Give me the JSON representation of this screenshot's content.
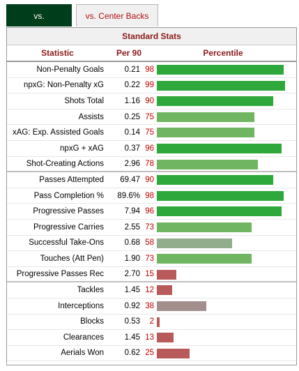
{
  "tabs": [
    {
      "label": "vs. Fullbacks",
      "active": true
    },
    {
      "label": "vs. Center Backs",
      "active": false
    }
  ],
  "table": {
    "title": "Standard Stats",
    "headers": {
      "statistic": "Statistic",
      "per90": "Per 90",
      "percentile": "Percentile"
    },
    "groups": [
      [
        {
          "stat": "Non-Penalty Goals",
          "per90": "0.21",
          "pct": 98
        },
        {
          "stat": "npxG: Non-Penalty xG",
          "per90": "0.22",
          "pct": 99
        },
        {
          "stat": "Shots Total",
          "per90": "1.16",
          "pct": 90
        },
        {
          "stat": "Assists",
          "per90": "0.25",
          "pct": 75
        },
        {
          "stat": "xAG: Exp. Assisted Goals",
          "per90": "0.14",
          "pct": 75
        },
        {
          "stat": "npxG + xAG",
          "per90": "0.37",
          "pct": 96
        },
        {
          "stat": "Shot-Creating Actions",
          "per90": "2.96",
          "pct": 78
        }
      ],
      [
        {
          "stat": "Passes Attempted",
          "per90": "69.47",
          "pct": 90
        },
        {
          "stat": "Pass Completion %",
          "per90": "89.6%",
          "pct": 98
        },
        {
          "stat": "Progressive Passes",
          "per90": "7.94",
          "pct": 96
        },
        {
          "stat": "Progressive Carries",
          "per90": "2.55",
          "pct": 73
        },
        {
          "stat": "Successful Take-Ons",
          "per90": "0.68",
          "pct": 58
        },
        {
          "stat": "Touches (Att Pen)",
          "per90": "1.90",
          "pct": 73
        },
        {
          "stat": "Progressive Passes Rec",
          "per90": "2.70",
          "pct": 15
        }
      ],
      [
        {
          "stat": "Tackles",
          "per90": "1.45",
          "pct": 12
        },
        {
          "stat": "Interceptions",
          "per90": "0.92",
          "pct": 38
        },
        {
          "stat": "Blocks",
          "per90": "0.53",
          "pct": 2
        },
        {
          "stat": "Clearances",
          "per90": "1.45",
          "pct": 13
        },
        {
          "stat": "Aerials Won",
          "per90": "0.62",
          "pct": 25
        }
      ]
    ]
  }
}
